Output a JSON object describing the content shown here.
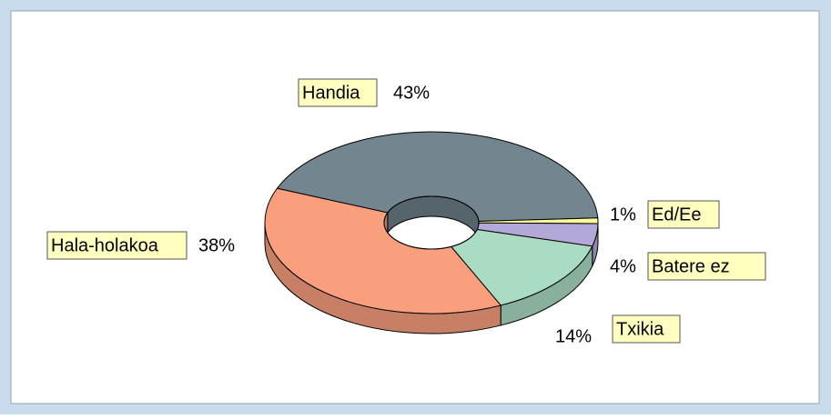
{
  "chart_data": {
    "type": "doughnut3d",
    "categories": [
      "Handia",
      "Ed/Ee",
      "Batere ez",
      "Txikia",
      "Hala-holakoa"
    ],
    "values": [
      43,
      1,
      4,
      14,
      38
    ],
    "value_labels": [
      "43%",
      "1%",
      "4%",
      "14%",
      "38%"
    ],
    "colors": [
      "#738690",
      "#ffff99",
      "#b3a8d8",
      "#aadcc4",
      "#f99f7e"
    ]
  }
}
